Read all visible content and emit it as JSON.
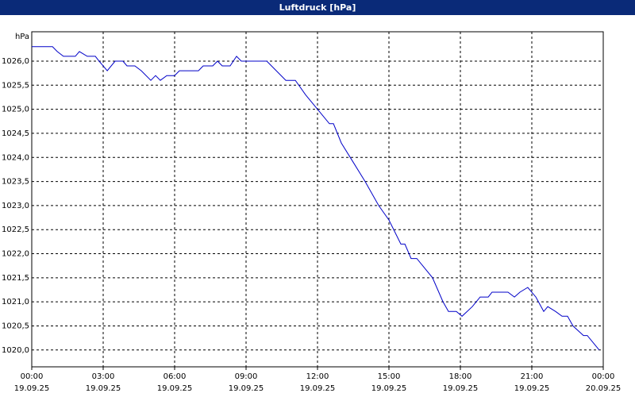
{
  "chart_data": {
    "type": "line",
    "title": "Luftdruck [hPa]",
    "y_unit": "hPa",
    "x": [
      0,
      0.87,
      1.07,
      1.33,
      1.83,
      2.0,
      2.33,
      2.67,
      2.83,
      3.17,
      3.5,
      3.83,
      4.0,
      4.33,
      4.6,
      5.0,
      5.2,
      5.4,
      5.67,
      6.0,
      6.2,
      7.0,
      7.2,
      7.6,
      7.8,
      8.0,
      8.33,
      8.6,
      8.8,
      9.87,
      10.27,
      10.67,
      11.07,
      11.5,
      12.0,
      12.5,
      12.67,
      13.0,
      13.5,
      14.0,
      14.57,
      15.0,
      15.5,
      15.67,
      15.93,
      16.17,
      16.83,
      17.27,
      17.5,
      17.83,
      18.07,
      18.5,
      18.83,
      19.17,
      19.33,
      20.0,
      20.27,
      20.5,
      20.83,
      21.17,
      21.5,
      21.67,
      22.0,
      22.27,
      22.5,
      22.73,
      23.17,
      23.33,
      23.83
    ],
    "series": [
      {
        "name": "Luftdruck",
        "color": "#0000c8",
        "values": [
          1026.3,
          1026.3,
          1026.2,
          1026.1,
          1026.1,
          1026.2,
          1026.1,
          1026.1,
          1026.0,
          1025.8,
          1026.0,
          1026.0,
          1025.9,
          1025.9,
          1025.8,
          1025.6,
          1025.7,
          1025.6,
          1025.7,
          1025.7,
          1025.8,
          1025.8,
          1025.9,
          1025.9,
          1026.0,
          1025.9,
          1025.9,
          1026.1,
          1026.0,
          1026.0,
          1025.8,
          1025.6,
          1025.6,
          1025.3,
          1025.0,
          1024.7,
          1024.7,
          1024.3,
          1023.9,
          1023.5,
          1023.0,
          1022.7,
          1022.2,
          1022.2,
          1021.9,
          1021.9,
          1021.5,
          1021.0,
          1020.8,
          1020.8,
          1020.7,
          1020.9,
          1021.1,
          1021.1,
          1021.2,
          1021.2,
          1021.1,
          1021.2,
          1021.3,
          1021.1,
          1020.8,
          1020.9,
          1020.8,
          1020.7,
          1020.7,
          1020.5,
          1020.3,
          1020.3,
          1020.0
        ]
      }
    ],
    "xlim": [
      0,
      24
    ],
    "xticks": [
      {
        "value": 0,
        "label": "00:00"
      },
      {
        "value": 3,
        "label": "03:00"
      },
      {
        "value": 6,
        "label": "06:00"
      },
      {
        "value": 9,
        "label": "09:00"
      },
      {
        "value": 12,
        "label": "12:00"
      },
      {
        "value": 15,
        "label": "15:00"
      },
      {
        "value": 18,
        "label": "18:00"
      },
      {
        "value": 21,
        "label": "21:00"
      },
      {
        "value": 24,
        "label": "00:00"
      }
    ],
    "xtick_dates": [
      "19.09.25",
      "19.09.25",
      "19.09.25",
      "19.09.25",
      "19.09.25",
      "19.09.25",
      "19.09.25",
      "19.09.25",
      "20.09.25"
    ],
    "ylim": [
      1019.65,
      1026.61
    ],
    "yticks": [
      {
        "value": 1020,
        "label": "1020,0"
      },
      {
        "value": 1020.5,
        "label": "1020,5"
      },
      {
        "value": 1021,
        "label": "1021,0"
      },
      {
        "value": 1021.5,
        "label": "1021,5"
      },
      {
        "value": 1022,
        "label": "1022,0"
      },
      {
        "value": 1022.5,
        "label": "1022,5"
      },
      {
        "value": 1023,
        "label": "1023,0"
      },
      {
        "value": 1023.5,
        "label": "1023,5"
      },
      {
        "value": 1024,
        "label": "1024,0"
      },
      {
        "value": 1024.5,
        "label": "1024,5"
      },
      {
        "value": 1025,
        "label": "1025,0"
      },
      {
        "value": 1025.5,
        "label": "1025,5"
      },
      {
        "value": 1026,
        "label": "1026,0"
      }
    ],
    "grid": true
  }
}
